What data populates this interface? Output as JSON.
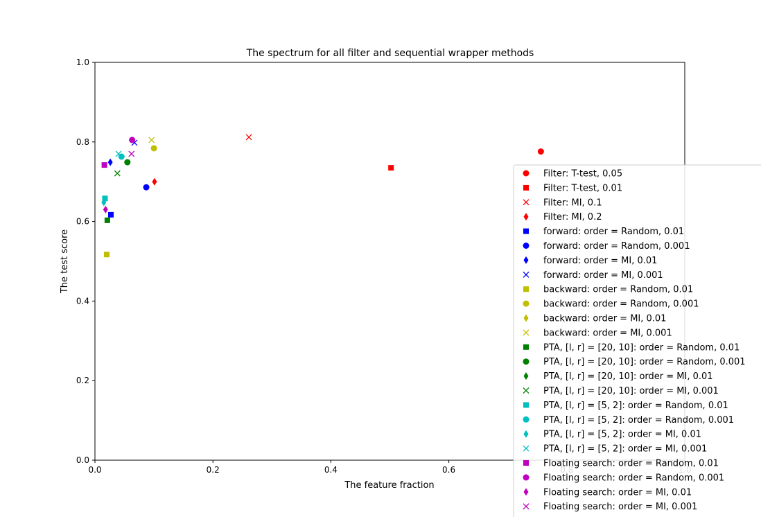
{
  "chart_data": {
    "type": "scatter",
    "title": "The spectrum for all filter and sequential wrapper methods",
    "xlabel": "The feature fraction",
    "ylabel": "The test score",
    "xlim": [
      0.0,
      1.0
    ],
    "ylim": [
      0.0,
      1.0
    ],
    "xticks": [
      "0.0",
      "0.2",
      "0.4",
      "0.6",
      "0.8",
      "1.0"
    ],
    "yticks": [
      "0.0",
      "0.2",
      "0.4",
      "0.6",
      "0.8",
      "1.0"
    ],
    "grid": false,
    "legend_position": "right, extending beyond the plot area",
    "series": [
      {
        "name": "Filter: T-test, 0.05",
        "color": "#ff0000",
        "marker": "circle",
        "points": [
          [
            0.756,
            0.776
          ]
        ]
      },
      {
        "name": "Filter: T-test, 0.01",
        "color": "#ff0000",
        "marker": "square",
        "points": [
          [
            0.502,
            0.735
          ]
        ]
      },
      {
        "name": "Filter: MI, 0.1",
        "color": "#ff0000",
        "marker": "x",
        "points": [
          [
            0.261,
            0.812
          ]
        ]
      },
      {
        "name": "Filter: MI, 0.2",
        "color": "#ff0000",
        "marker": "diamond",
        "points": [
          [
            0.101,
            0.7
          ]
        ]
      },
      {
        "name": "forward: order = Random, 0.01",
        "color": "#0000ff",
        "marker": "square",
        "points": [
          [
            0.027,
            0.617
          ]
        ]
      },
      {
        "name": "forward: order = Random, 0.001",
        "color": "#0000ff",
        "marker": "circle",
        "points": [
          [
            0.087,
            0.686
          ]
        ]
      },
      {
        "name": "forward: order = MI, 0.01",
        "color": "#0000ff",
        "marker": "diamond",
        "points": [
          [
            0.026,
            0.749
          ]
        ]
      },
      {
        "name": "forward: order = MI, 0.001",
        "color": "#0000ff",
        "marker": "x",
        "points": [
          [
            0.067,
            0.798
          ]
        ]
      },
      {
        "name": "backward: order = Random, 0.01",
        "color": "#bfbf00",
        "marker": "square",
        "points": [
          [
            0.02,
            0.517
          ]
        ]
      },
      {
        "name": "backward: order = Random, 0.001",
        "color": "#bfbf00",
        "marker": "circle",
        "points": [
          [
            0.1,
            0.784
          ]
        ]
      },
      {
        "name": "backward: order = MI, 0.01",
        "color": "#bfbf00",
        "marker": "diamond",
        "points": []
      },
      {
        "name": "backward: order = MI, 0.001",
        "color": "#bfbf00",
        "marker": "x",
        "points": [
          [
            0.096,
            0.805
          ]
        ]
      },
      {
        "name": "PTA, [l, r] = [20, 10]: order = Random, 0.01",
        "color": "#008000",
        "marker": "square",
        "points": [
          [
            0.021,
            0.603
          ]
        ]
      },
      {
        "name": "PTA, [l, r] = [20, 10]: order = Random, 0.001",
        "color": "#008000",
        "marker": "circle",
        "points": [
          [
            0.055,
            0.749
          ]
        ]
      },
      {
        "name": "PTA, [l, r] = [20, 10]: order = MI, 0.01",
        "color": "#008000",
        "marker": "diamond",
        "points": []
      },
      {
        "name": "PTA, [l, r] = [20, 10]: order = MI, 0.001",
        "color": "#008000",
        "marker": "x",
        "points": [
          [
            0.038,
            0.721
          ]
        ]
      },
      {
        "name": "PTA, [l, r] = [5, 2]: order = Random, 0.01",
        "color": "#00bfbf",
        "marker": "square",
        "points": [
          [
            0.017,
            0.658
          ]
        ]
      },
      {
        "name": "PTA, [l, r] = [5, 2]: order = Random, 0.001",
        "color": "#00bfbf",
        "marker": "circle",
        "points": [
          [
            0.045,
            0.763
          ]
        ]
      },
      {
        "name": "PTA, [l, r] = [5, 2]: order = MI, 0.01",
        "color": "#00bfbf",
        "marker": "diamond",
        "points": [
          [
            0.015,
            0.648
          ]
        ]
      },
      {
        "name": "PTA, [l, r] = [5, 2]: order = MI, 0.001",
        "color": "#00bfbf",
        "marker": "x",
        "points": [
          [
            0.04,
            0.77
          ]
        ]
      },
      {
        "name": "Floating search: order = Random, 0.01",
        "color": "#bf00bf",
        "marker": "square",
        "points": [
          [
            0.016,
            0.742
          ]
        ]
      },
      {
        "name": "Floating search: order = Random, 0.001",
        "color": "#bf00bf",
        "marker": "circle",
        "points": [
          [
            0.063,
            0.805
          ]
        ]
      },
      {
        "name": "Floating search: order = MI, 0.01",
        "color": "#bf00bf",
        "marker": "diamond",
        "points": [
          [
            0.018,
            0.63
          ]
        ]
      },
      {
        "name": "Floating search: order = MI, 0.001",
        "color": "#bf00bf",
        "marker": "x",
        "points": [
          [
            0.062,
            0.77
          ]
        ]
      }
    ]
  }
}
